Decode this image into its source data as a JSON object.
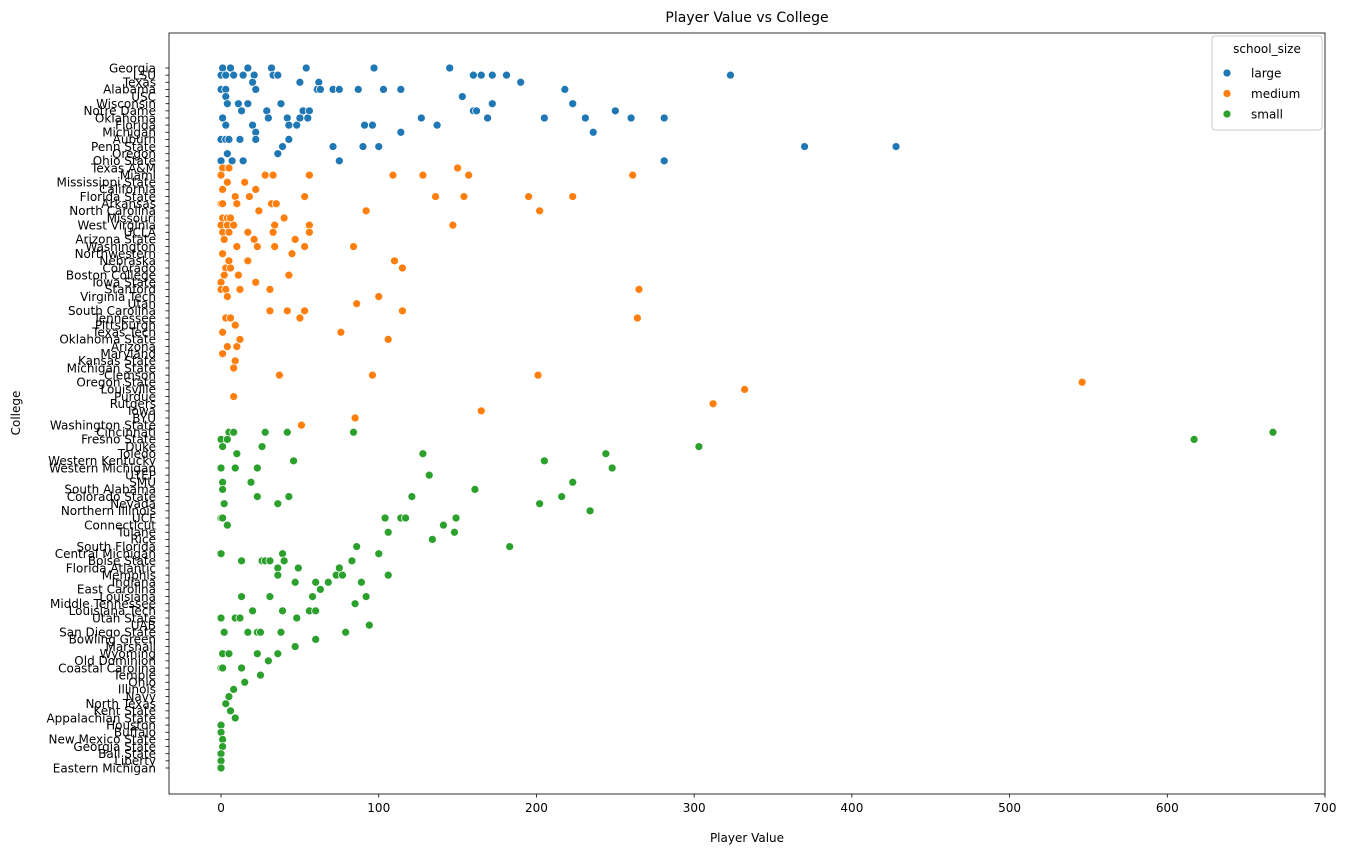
{
  "chart_data": {
    "type": "scatter",
    "title": "Player Value vs College",
    "xlabel": "Player Value",
    "ylabel": "College",
    "xlim": [
      -33,
      700
    ],
    "xticks": [
      0,
      100,
      200,
      300,
      400,
      500,
      600,
      700
    ],
    "grid": false,
    "legend": {
      "title": "school_size",
      "placement": "top-right",
      "entries": [
        {
          "name": "large",
          "color": "#1f77b4"
        },
        {
          "name": "medium",
          "color": "#ff7f0e"
        },
        {
          "name": "small",
          "color": "#2ca02c"
        }
      ]
    },
    "categories": [
      "Georgia",
      "LSU",
      "Texas",
      "Alabama",
      "USC",
      "Wisconsin",
      "Notre Dame",
      "Oklahoma",
      "Florida",
      "Michigan",
      "Auburn",
      "Penn State",
      "Oregon",
      "Ohio State",
      "Texas A&M",
      "Miami",
      "Mississippi State",
      "California",
      "Florida State",
      "Arkansas",
      "North Carolina",
      "Missouri",
      "West Virginia",
      "UCLA",
      "Arizona State",
      "Washington",
      "Northwestern",
      "Nebraska",
      "Colorado",
      "Boston College",
      "Iowa State",
      "Stanford",
      "Virginia Tech",
      "Utah",
      "South Carolina",
      "Tennessee",
      "Pittsburgh",
      "Texas Tech",
      "Oklahoma State",
      "Arizona",
      "Maryland",
      "Kansas State",
      "Michigan State",
      "Clemson",
      "Oregon State",
      "Louisville",
      "Purdue",
      "Rutgers",
      "Iowa",
      "BYU",
      "Washington State",
      "Cincinnati",
      "Fresno State",
      "Duke",
      "Toledo",
      "Western Kentucky",
      "Western Michigan",
      "UTEP",
      "SMU",
      "South Alabama",
      "Colorado State",
      "Nevada",
      "Northern Illinois",
      "UCF",
      "Connecticut",
      "Tulane",
      "Rice",
      "South Florida",
      "Central Michigan",
      "Boise State",
      "Florida Atlantic",
      "Memphis",
      "Indiana",
      "East Carolina",
      "Louisiana",
      "Middle Tennessee",
      "Louisiana Tech",
      "Utah State",
      "UAB",
      "San Diego State",
      "Bowling Green",
      "Marshall",
      "Wyoming",
      "Old Dominion",
      "Coastal Carolina",
      "Temple",
      "Ohio",
      "Illinois",
      "Navy",
      "North Texas",
      "Kent State",
      "Appalachian State",
      "Houston",
      "Buffalo",
      "New Mexico State",
      "Georgia State",
      "Ball State",
      "Liberty",
      "Eastern Michigan"
    ],
    "series": [
      {
        "name": "large",
        "color": "#1f77b4",
        "points": [
          [
            "Georgia",
            [
              1,
              6,
              17,
              32,
              54,
              97,
              145
            ]
          ],
          [
            "LSU",
            [
              0,
              3,
              8,
              14,
              21,
              33,
              36,
              160,
              165,
              172,
              181,
              323
            ]
          ],
          [
            "Texas",
            [
              20,
              50,
              62,
              190
            ]
          ],
          [
            "Alabama",
            [
              0,
              3,
              22,
              61,
              63,
              71,
              75,
              87,
              103,
              114,
              218
            ]
          ],
          [
            "USC",
            [
              3,
              153
            ]
          ],
          [
            "Wisconsin",
            [
              4,
              11,
              17,
              38,
              172,
              223
            ]
          ],
          [
            "Notre Dame",
            [
              13,
              29,
              52,
              56,
              160,
              162,
              250
            ]
          ],
          [
            "Oklahoma",
            [
              1,
              30,
              42,
              50,
              55,
              127,
              169,
              205,
              231,
              260,
              281
            ]
          ],
          [
            "Florida",
            [
              3,
              20,
              43,
              48,
              91,
              96,
              137
            ]
          ],
          [
            "Michigan",
            [
              22,
              114,
              236
            ]
          ],
          [
            "Auburn",
            [
              0,
              3,
              5,
              12,
              22,
              43
            ]
          ],
          [
            "Penn State",
            [
              39,
              71,
              90,
              100,
              370,
              428
            ]
          ],
          [
            "Oregon",
            [
              4,
              36
            ]
          ],
          [
            "Ohio State",
            [
              0,
              7,
              14,
              75,
              281
            ]
          ]
        ]
      },
      {
        "name": "medium",
        "color": "#ff7f0e",
        "points": [
          [
            "Texas A&M",
            [
              1,
              5,
              150
            ]
          ],
          [
            "Miami",
            [
              0,
              28,
              33,
              56,
              109,
              128,
              157,
              261
            ]
          ],
          [
            "Mississippi State",
            [
              4,
              15
            ]
          ],
          [
            "California",
            [
              1,
              22
            ]
          ],
          [
            "Florida State",
            [
              9,
              18,
              53,
              136,
              154,
              195,
              223
            ]
          ],
          [
            "Arkansas",
            [
              0,
              1,
              10,
              32,
              35
            ]
          ],
          [
            "North Carolina",
            [
              24,
              92,
              202
            ]
          ],
          [
            "Missouri",
            [
              1,
              4,
              6,
              40
            ]
          ],
          [
            "West Virginia",
            [
              0,
              4,
              8,
              34,
              56,
              147
            ]
          ],
          [
            "UCLA",
            [
              1,
              5,
              17,
              33,
              56
            ]
          ],
          [
            "Arizona State",
            [
              2,
              21,
              47
            ]
          ],
          [
            "Washington",
            [
              10,
              23,
              34,
              53,
              84
            ]
          ],
          [
            "Northwestern",
            [
              1,
              45
            ]
          ],
          [
            "Nebraska",
            [
              5,
              17,
              110
            ]
          ],
          [
            "Colorado",
            [
              3,
              6,
              115
            ]
          ],
          [
            "Boston College",
            [
              2,
              11,
              43
            ]
          ],
          [
            "Iowa State",
            [
              0,
              22
            ]
          ],
          [
            "Stanford",
            [
              0,
              3,
              12,
              31,
              265
            ]
          ],
          [
            "Virginia Tech",
            [
              4,
              100
            ]
          ],
          [
            "Utah",
            [
              86
            ]
          ],
          [
            "South Carolina",
            [
              31,
              42,
              53,
              115
            ]
          ],
          [
            "Tennessee",
            [
              3,
              6,
              50,
              264
            ]
          ],
          [
            "Pittsburgh",
            [
              9
            ]
          ],
          [
            "Texas Tech",
            [
              1,
              76
            ]
          ],
          [
            "Oklahoma State",
            [
              12,
              106
            ]
          ],
          [
            "Arizona",
            [
              4,
              10
            ]
          ],
          [
            "Maryland",
            [
              1
            ]
          ],
          [
            "Kansas State",
            [
              9
            ]
          ],
          [
            "Michigan State",
            [
              8
            ]
          ],
          [
            "Clemson",
            [
              37,
              96,
              201
            ]
          ],
          [
            "Oregon State",
            [
              546
            ]
          ],
          [
            "Louisville",
            [
              332
            ]
          ],
          [
            "Purdue",
            [
              8
            ]
          ],
          [
            "Rutgers",
            [
              312
            ]
          ],
          [
            "Iowa",
            [
              165
            ]
          ],
          [
            "BYU",
            [
              85
            ]
          ],
          [
            "Washington State",
            [
              51
            ]
          ]
        ]
      },
      {
        "name": "small",
        "color": "#2ca02c",
        "points": [
          [
            "Cincinnati",
            [
              5,
              8,
              28,
              42,
              84,
              667
            ]
          ],
          [
            "Fresno State",
            [
              0,
              4,
              617
            ]
          ],
          [
            "Duke",
            [
              1,
              26,
              303
            ]
          ],
          [
            "Toledo",
            [
              10,
              128,
              244
            ]
          ],
          [
            "Western Kentucky",
            [
              46,
              205
            ]
          ],
          [
            "Western Michigan",
            [
              0,
              9,
              23,
              248
            ]
          ],
          [
            "UTEP",
            [
              132
            ]
          ],
          [
            "SMU",
            [
              1,
              19,
              223
            ]
          ],
          [
            "South Alabama",
            [
              1,
              161
            ]
          ],
          [
            "Colorado State",
            [
              23,
              43,
              121,
              216
            ]
          ],
          [
            "Nevada",
            [
              2,
              36,
              202
            ]
          ],
          [
            "Northern Illinois",
            [
              234
            ]
          ],
          [
            "UCF",
            [
              0,
              1,
              104,
              114,
              117,
              149
            ]
          ],
          [
            "Connecticut",
            [
              4,
              141
            ]
          ],
          [
            "Tulane",
            [
              106,
              148
            ]
          ],
          [
            "Rice",
            [
              134
            ]
          ],
          [
            "South Florida",
            [
              86,
              183
            ]
          ],
          [
            "Central Michigan",
            [
              0,
              39,
              100
            ]
          ],
          [
            "Boise State",
            [
              13,
              26,
              28,
              31,
              40,
              83
            ]
          ],
          [
            "Florida Atlantic",
            [
              36,
              49,
              75
            ]
          ],
          [
            "Memphis",
            [
              36,
              73,
              77,
              106
            ]
          ],
          [
            "Indiana",
            [
              47,
              60,
              68,
              89
            ]
          ],
          [
            "East Carolina",
            [
              63
            ]
          ],
          [
            "Louisiana",
            [
              13,
              31,
              58,
              92
            ]
          ],
          [
            "Middle Tennessee",
            [
              85
            ]
          ],
          [
            "Louisiana Tech",
            [
              20,
              39,
              56,
              60
            ]
          ],
          [
            "Utah State",
            [
              0,
              9,
              12,
              48
            ]
          ],
          [
            "UAB",
            [
              94
            ]
          ],
          [
            "San Diego State",
            [
              2,
              17,
              23,
              25,
              38,
              79
            ]
          ],
          [
            "Bowling Green",
            [
              60
            ]
          ],
          [
            "Marshall",
            [
              47
            ]
          ],
          [
            "Wyoming",
            [
              1,
              5,
              23,
              36
            ]
          ],
          [
            "Old Dominion",
            [
              30
            ]
          ],
          [
            "Coastal Carolina",
            [
              0,
              1,
              13
            ]
          ],
          [
            "Temple",
            [
              25
            ]
          ],
          [
            "Ohio",
            [
              15
            ]
          ],
          [
            "Illinois",
            [
              8
            ]
          ],
          [
            "Navy",
            [
              5
            ]
          ],
          [
            "North Texas",
            [
              3
            ]
          ],
          [
            "Kent State",
            [
              6
            ]
          ],
          [
            "Appalachian State",
            [
              9
            ]
          ],
          [
            "Houston",
            [
              0
            ]
          ],
          [
            "Buffalo",
            [
              0
            ]
          ],
          [
            "New Mexico State",
            [
              1
            ]
          ],
          [
            "Georgia State",
            [
              1
            ]
          ],
          [
            "Ball State",
            [
              0
            ]
          ],
          [
            "Liberty",
            [
              0
            ]
          ],
          [
            "Eastern Michigan",
            [
              0
            ]
          ]
        ]
      }
    ]
  }
}
